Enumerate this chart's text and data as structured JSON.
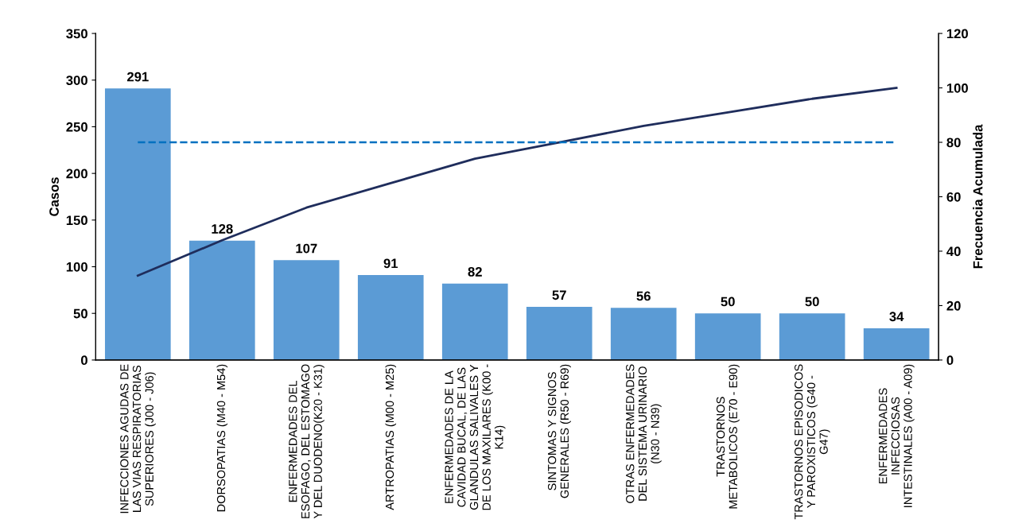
{
  "chart_data": {
    "type": "bar",
    "ylabel": "Casos",
    "y2label": "Frecuencia Acumulada",
    "categories": [
      "INFECCIONES AGUDAS DE\nLAS VIAS RESPIRATORIAS\nSUPERIORES (J00 - J06)",
      "DORSOPATIAS (M40 - M54)",
      "ENFERMEDADES DEL\nESOFAGO, DEL ESTOMAGO\nY DEL DUODENO(K20 - K31)",
      "ARTROPATIAS (M00 - M25)",
      "ENFERMEDADES DE LA\nCAVIDAD BUCAL, DE LAS\nGLANDULAS SALIVALES Y\nDE LOS MAXILARES (K00 -\nK14)",
      "SINTOMAS Y SIGNOS\nGENERALES (R50 - R69)",
      "OTRAS ENFERMEDADES\nDEL SISTEMA URINARIO\n(N30 - N39)",
      "TRASTORNOS\nMETABOLICOS (E70 - E90)",
      "TRASTORNOS EPISODICOS\nY PAROXISTICOS (G40 -\nG47)",
      "ENFERMEDADES\nINFECCIOSAS\nINTESTINALES (A00 - A09)"
    ],
    "series": [
      {
        "color": "#5b9bd5",
        "values": [
          291,
          128,
          107,
          91,
          82,
          57,
          56,
          50,
          50,
          34
        ],
        "value_labels": [
          "291",
          "128",
          "107",
          "91",
          "82",
          "57",
          "56",
          "50",
          "50",
          "34"
        ]
      },
      {
        "type": "line",
        "axis": "y2",
        "color": "#1f2d5c",
        "values": [
          31,
          44,
          56,
          65,
          74,
          80,
          86,
          91,
          96,
          100
        ]
      }
    ],
    "ylim": [
      0,
      350
    ],
    "yticks": [
      0,
      50,
      100,
      150,
      200,
      250,
      300,
      350
    ],
    "y2lim": [
      0,
      120
    ],
    "y2ticks": [
      0,
      20,
      40,
      60,
      80,
      100,
      120
    ],
    "ref_lines": [
      {
        "axis": "y2",
        "value": 80,
        "color": "#0070c0",
        "line_style": "dashed"
      }
    ],
    "grid": false,
    "legend": false
  }
}
